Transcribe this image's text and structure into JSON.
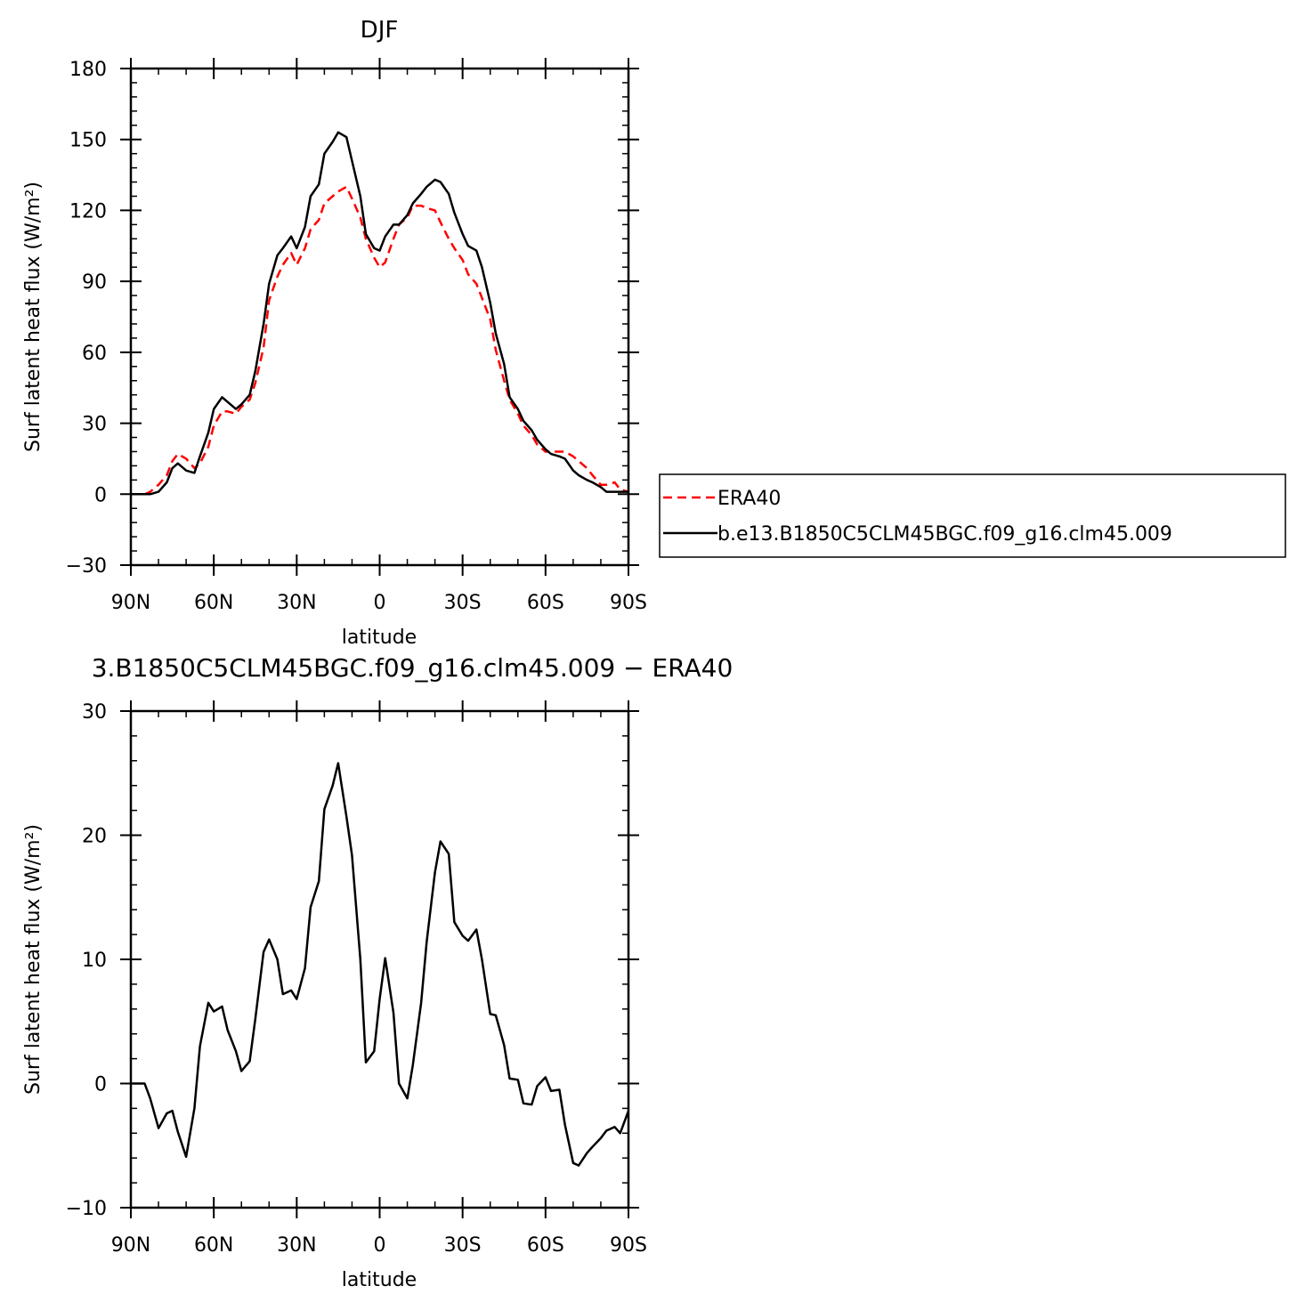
{
  "chart_data": [
    {
      "type": "line",
      "title": "DJF",
      "xlabel": "latitude",
      "ylabel": "Surf latent heat flux (W/m²)",
      "xlim": [
        90,
        -90
      ],
      "ylim": [
        -30,
        180
      ],
      "yticks": [
        -30,
        0,
        30,
        60,
        90,
        120,
        150,
        180
      ],
      "xticks": [
        90,
        60,
        30,
        0,
        -30,
        -60,
        -90
      ],
      "xtick_labels": [
        "90N",
        "60N",
        "30N",
        "0",
        "30S",
        "60S",
        "90S"
      ],
      "ytick_labels": [
        "−30",
        "0",
        "30",
        "60",
        "90",
        "120",
        "150",
        "180"
      ],
      "grid": false,
      "legend_position": "right, outside plot",
      "series": [
        {
          "name": "ERA40",
          "color": "#ff0000",
          "dash": "dashed",
          "x": [
            90,
            85,
            83,
            80,
            77,
            75,
            73,
            70,
            67,
            65,
            62,
            60,
            57,
            55,
            52,
            50,
            47,
            45,
            42,
            40,
            37,
            35,
            32,
            30,
            27,
            25,
            22,
            20,
            17,
            15,
            12,
            10,
            7,
            5,
            2,
            0,
            -2,
            -5,
            -7,
            -10,
            -12,
            -15,
            -17,
            -20,
            -22,
            -25,
            -27,
            -30,
            -32,
            -35,
            -37,
            -40,
            -42,
            -45,
            -47,
            -50,
            -52,
            -55,
            -57,
            -60,
            -62,
            -65,
            -67,
            -70,
            -72,
            -75,
            -77,
            -80,
            -82,
            -85,
            -87,
            -90
          ],
          "y": [
            0,
            0,
            1,
            4,
            8,
            14,
            17,
            15,
            11,
            13,
            20,
            29,
            35,
            35,
            34,
            37,
            40,
            47,
            62,
            82,
            92,
            97,
            102,
            97,
            104,
            112,
            116,
            123,
            126,
            128,
            130,
            125,
            117,
            108,
            100,
            96,
            98,
            108,
            114,
            117,
            122,
            122,
            121,
            120,
            115,
            108,
            104,
            99,
            93,
            89,
            83,
            74,
            61,
            48,
            40,
            34,
            29,
            25,
            21,
            18,
            18,
            18,
            18,
            16,
            14,
            11,
            8,
            4,
            4,
            5,
            2,
            1
          ]
        },
        {
          "name": "b.e13.B1850C5CLM45BGC.f09_g16.clm45.009",
          "color": "#000000",
          "dash": "solid",
          "x": [
            90,
            85,
            83,
            80,
            77,
            75,
            73,
            70,
            67,
            65,
            62,
            60,
            57,
            55,
            52,
            50,
            47,
            45,
            42,
            40,
            37,
            35,
            32,
            30,
            27,
            25,
            22,
            20,
            17,
            15,
            12,
            10,
            7,
            5,
            2,
            0,
            -2,
            -5,
            -7,
            -10,
            -12,
            -15,
            -17,
            -20,
            -22,
            -25,
            -27,
            -30,
            -32,
            -35,
            -37,
            -40,
            -42,
            -45,
            -47,
            -50,
            -52,
            -55,
            -57,
            -60,
            -62,
            -65,
            -67,
            -70,
            -72,
            -75,
            -77,
            -80,
            -82,
            -85,
            -87,
            -90
          ],
          "y": [
            0,
            0,
            0,
            1,
            5,
            11,
            13,
            10,
            9,
            16,
            26,
            36,
            41,
            39,
            36,
            38,
            42,
            52,
            72,
            89,
            101,
            104,
            109,
            104,
            113,
            126,
            131,
            144,
            149,
            153,
            151,
            141,
            126,
            110,
            104,
            103,
            109,
            114,
            114,
            118,
            123,
            127,
            130,
            133,
            132,
            127,
            119,
            110,
            105,
            103,
            96,
            81,
            68,
            55,
            41,
            36,
            31,
            27,
            23,
            19,
            17,
            16,
            15,
            10,
            8,
            6,
            5,
            3,
            1,
            1,
            1,
            1
          ]
        }
      ]
    },
    {
      "type": "line",
      "title": "3.B1850C5CLM45BGC.f09_g16.clm45.009  −  ERA40",
      "xlabel": "latitude",
      "ylabel": "Surf latent heat flux (W/m²)",
      "xlim": [
        90,
        -90
      ],
      "ylim": [
        -10,
        30
      ],
      "yticks": [
        -10,
        0,
        10,
        20,
        30
      ],
      "xticks": [
        90,
        60,
        30,
        0,
        -30,
        -60,
        -90
      ],
      "xtick_labels": [
        "90N",
        "60N",
        "30N",
        "0",
        "30S",
        "60S",
        "90S"
      ],
      "ytick_labels": [
        "−10",
        "0",
        "10",
        "20",
        "30"
      ],
      "grid": false,
      "series": [
        {
          "color": "#000000",
          "dash": "solid",
          "x": [
            90,
            85,
            83,
            80,
            77,
            75,
            73,
            70,
            67,
            65,
            62,
            60,
            57,
            55,
            52,
            50,
            47,
            45,
            42,
            40,
            37,
            35,
            32,
            30,
            27,
            25,
            22,
            20,
            17,
            15,
            12,
            10,
            7,
            5,
            2,
            0,
            -2,
            -5,
            -7,
            -10,
            -12,
            -15,
            -17,
            -20,
            -22,
            -25,
            -27,
            -30,
            -32,
            -35,
            -37,
            -40,
            -42,
            -45,
            -47,
            -50,
            -52,
            -55,
            -57,
            -60,
            -62,
            -65,
            -67,
            -70,
            -72,
            -75,
            -77,
            -80,
            -82,
            -85,
            -87,
            -90
          ],
          "y": [
            0,
            0,
            -1.2,
            -3.6,
            -2.4,
            -2.2,
            -3.9,
            -5.9,
            -2,
            3,
            6.5,
            5.8,
            6.2,
            4.3,
            2.6,
            1,
            1.8,
            5.2,
            10.6,
            11.6,
            10,
            7.2,
            7.5,
            6.8,
            9.3,
            14.2,
            16.3,
            22.1,
            24,
            25.8,
            21.5,
            18.4,
            10,
            1.7,
            2.6,
            6.8,
            10.1,
            5.7,
            0,
            -1.2,
            1.5,
            6.5,
            11.4,
            17,
            19.5,
            18.5,
            13,
            11.9,
            11.5,
            12.4,
            10,
            5.6,
            5.5,
            3.1,
            0.4,
            0.3,
            -1.6,
            -1.7,
            -0.2,
            0.5,
            -0.6,
            -0.5,
            -3.3,
            -6.4,
            -6.6,
            -5.6,
            -5.1,
            -4.4,
            -3.8,
            -3.5,
            -4,
            -2.2
          ]
        }
      ]
    }
  ]
}
